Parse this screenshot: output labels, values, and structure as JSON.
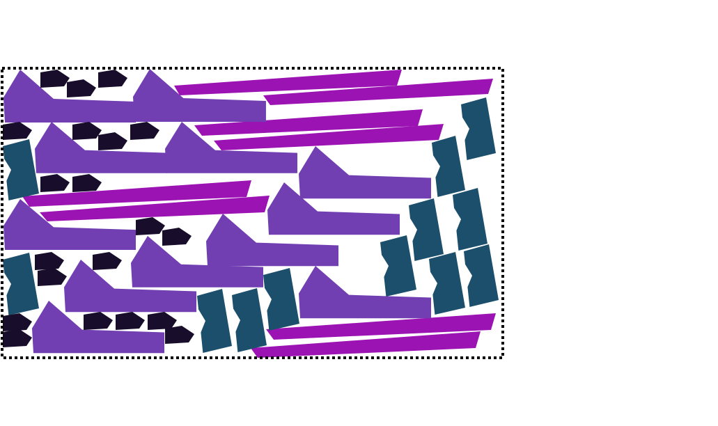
{
  "canvas": {
    "background": "#ffffff"
  },
  "container": {
    "border_style": "dotted",
    "border_color": "#000000"
  },
  "colors": {
    "boot": "#713fb2",
    "strip": "#9c13b3",
    "tile": "#1b4f6c",
    "chip": "#180d2a"
  },
  "counts": {
    "boot": 12,
    "strip": 8,
    "tile": 13,
    "chip": 22
  }
}
